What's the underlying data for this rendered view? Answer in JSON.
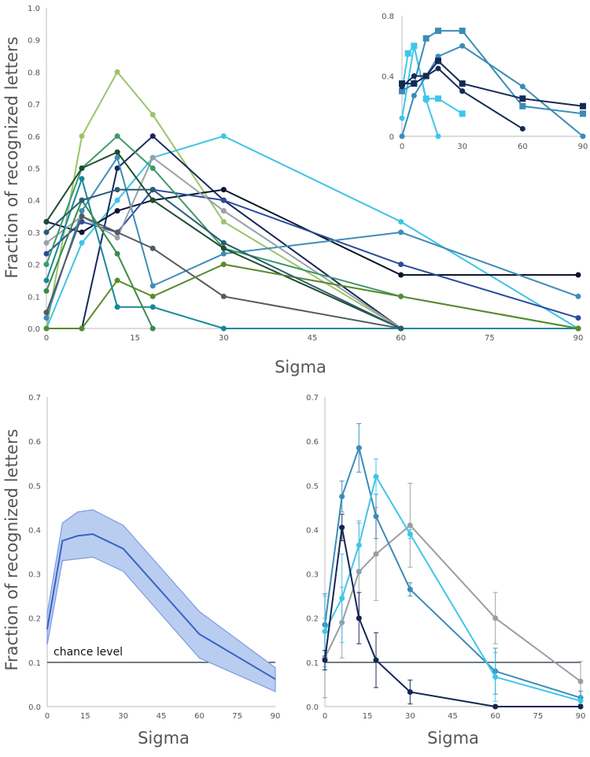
{
  "chart_data": [
    {
      "type": "line",
      "xlabel": "Sigma",
      "ylabel": "Fraction of recognized letters",
      "xlim": [
        0,
        90
      ],
      "ylim": [
        0,
        1.0
      ],
      "xticks": [
        0,
        15,
        30,
        45,
        60,
        75,
        90
      ],
      "yticks": [
        "0.0",
        "0.1",
        "0.2",
        "0.3",
        "0.4",
        "0.5",
        "0.6",
        "0.7",
        "0.8",
        "0.9",
        "1.0"
      ],
      "grid": false,
      "x": [
        0,
        6,
        12,
        18,
        30,
        60,
        90
      ],
      "series": [
        {
          "color": "#9cc46a",
          "values": [
            0,
            0.6,
            0.8,
            0.667,
            0.333,
            0,
            0
          ]
        },
        {
          "color": "#41c3e6",
          "values": [
            0,
            0.267,
            0.4,
            0.533,
            0.6,
            0.333,
            0
          ]
        },
        {
          "color": "#17285a",
          "values": [
            null,
            0,
            0.5,
            0.6,
            0.4,
            0,
            null
          ]
        },
        {
          "color": "#0c1530",
          "values": [
            0.333,
            0.3,
            0.367,
            0.4,
            0.433,
            0.167,
            0.167
          ]
        },
        {
          "color": "#2b4c9c",
          "values": [
            0.233,
            0.333,
            0.3,
            0.433,
            0.4,
            0.2,
            0.033
          ]
        },
        {
          "color": "#3d8cb8",
          "values": [
            0.033,
            0.367,
            0.533,
            0.133,
            0.233,
            0.3,
            0.1
          ]
        },
        {
          "color": "#9aa1a9",
          "values": [
            0.267,
            0.35,
            0.283,
            0.533,
            0.367,
            0,
            null
          ]
        },
        {
          "color": "#545b61",
          "values": [
            0.05,
            0.35,
            0.3,
            0.25,
            0.1,
            0,
            null
          ]
        },
        {
          "color": "#17889a",
          "values": [
            0.15,
            0.467,
            0.067,
            0.067,
            0,
            0,
            0
          ]
        },
        {
          "color": "#3f9a68",
          "values": [
            0.2,
            0.5,
            0.6,
            0.5,
            0.25,
            0.1,
            0
          ]
        },
        {
          "color": "#3a8c4c",
          "values": [
            0.117,
            0.4,
            0.233,
            0,
            null,
            null,
            null
          ]
        },
        {
          "color": "#1e4d2f",
          "values": [
            0.333,
            0.5,
            0.55,
            0.4,
            0.25,
            0,
            null
          ]
        },
        {
          "color": "#5a8a2e",
          "values": [
            0,
            0,
            0.15,
            0.1,
            0.2,
            0.1,
            0
          ]
        },
        {
          "color": "#2c5b72",
          "values": [
            0.3,
            0.4,
            0.433,
            0.433,
            0.267,
            0,
            null
          ]
        }
      ]
    },
    {
      "type": "line",
      "xlim": [
        0,
        90
      ],
      "ylim": [
        0,
        0.8
      ],
      "xticks": [
        0,
        30,
        60,
        90
      ],
      "yticks": [
        "0",
        "0.4",
        "0.8"
      ],
      "series": [
        {
          "color": "#3ec6ea",
          "marker": "square",
          "x": [
            0,
            3,
            6,
            12,
            18,
            30
          ],
          "values": [
            0.3,
            0.55,
            0.6,
            0.25,
            0.25,
            0.15
          ]
        },
        {
          "color": "#3ec6ea",
          "marker": "circle",
          "x": [
            0,
            6,
            12,
            18
          ],
          "values": [
            0.12,
            0.6,
            0.24,
            0
          ]
        },
        {
          "color": "#3b8bb7",
          "marker": "square",
          "x": [
            0,
            6,
            12,
            18,
            30,
            60,
            90
          ],
          "values": [
            0.3,
            0.35,
            0.65,
            0.7,
            0.7,
            0.2,
            0.15
          ]
        },
        {
          "color": "#3b8bb7",
          "marker": "circle",
          "x": [
            0,
            6,
            18,
            30,
            60,
            90
          ],
          "values": [
            0,
            0.27,
            0.53,
            0.6,
            0.33,
            0
          ]
        },
        {
          "color": "#142a55",
          "marker": "square",
          "x": [
            0,
            6,
            12,
            18,
            30,
            60,
            90
          ],
          "values": [
            0.35,
            0.35,
            0.4,
            0.5,
            0.35,
            0.25,
            0.2
          ]
        },
        {
          "color": "#142a55",
          "marker": "circle",
          "x": [
            0,
            6,
            12,
            18,
            30,
            60
          ],
          "values": [
            0.33,
            0.4,
            0.4,
            0.45,
            0.3,
            0.05
          ]
        }
      ]
    },
    {
      "type": "area",
      "xlabel": "Sigma",
      "ylabel": "Fraction of recognized letters",
      "xlim": [
        0,
        90
      ],
      "ylim": [
        0,
        0.7
      ],
      "xticks": [
        0,
        15,
        30,
        45,
        60,
        75,
        90
      ],
      "yticks": [
        "0.0",
        "0.1",
        "0.2",
        "0.3",
        "0.4",
        "0.5",
        "0.6",
        "0.7"
      ],
      "x": [
        0,
        6,
        12,
        18,
        30,
        60,
        90
      ],
      "mean": [
        0.175,
        0.375,
        0.386,
        0.39,
        0.357,
        0.164,
        0.062
      ],
      "upper": [
        0.21,
        0.415,
        0.44,
        0.445,
        0.41,
        0.215,
        0.088
      ],
      "lower": [
        0.14,
        0.33,
        0.334,
        0.338,
        0.306,
        0.11,
        0.034
      ],
      "line_color": "#3a62c6",
      "band_color": "#b9cdf0",
      "reference_line": {
        "y": 0.1,
        "label": "chance level"
      }
    },
    {
      "type": "line",
      "xlabel": "Sigma",
      "xlim": [
        0,
        90
      ],
      "ylim": [
        0,
        0.7
      ],
      "xticks": [
        0,
        15,
        30,
        45,
        60,
        75,
        90
      ],
      "yticks": [
        "0.0",
        "0.1",
        "0.2",
        "0.3",
        "0.4",
        "0.5",
        "0.6",
        "0.7"
      ],
      "x": [
        0,
        6,
        12,
        18,
        30,
        60,
        90
      ],
      "reference_line": {
        "y": 0.1
      },
      "series": [
        {
          "color": "#9a9ea3",
          "values": [
            0.11,
            0.19,
            0.305,
            0.345,
            0.41,
            0.2,
            0.057
          ],
          "error": [
            0.09,
            0.08,
            0.11,
            0.105,
            0.095,
            0.058,
            0.045
          ]
        },
        {
          "color": "#3b8bb7",
          "values": [
            0.185,
            0.475,
            0.585,
            0.43,
            0.265,
            0.08,
            0.02
          ],
          "error": [
            0.07,
            0.035,
            0.055,
            0.05,
            0.015,
            0.052,
            0.015
          ]
        },
        {
          "color": "#3ec6ea",
          "values": [
            0.17,
            0.245,
            0.365,
            0.52,
            0.39,
            0.067,
            0.013
          ],
          "error": [
            0.08,
            0.1,
            0.055,
            0.04,
            0.01,
            0.055,
            0.01
          ]
        },
        {
          "color": "#152553",
          "values": [
            0.105,
            0.405,
            0.2,
            0.105,
            0.033,
            0,
            0
          ],
          "error": [
            0.022,
            0.03,
            0.058,
            0.062,
            0.027,
            0,
            0
          ]
        }
      ]
    }
  ]
}
